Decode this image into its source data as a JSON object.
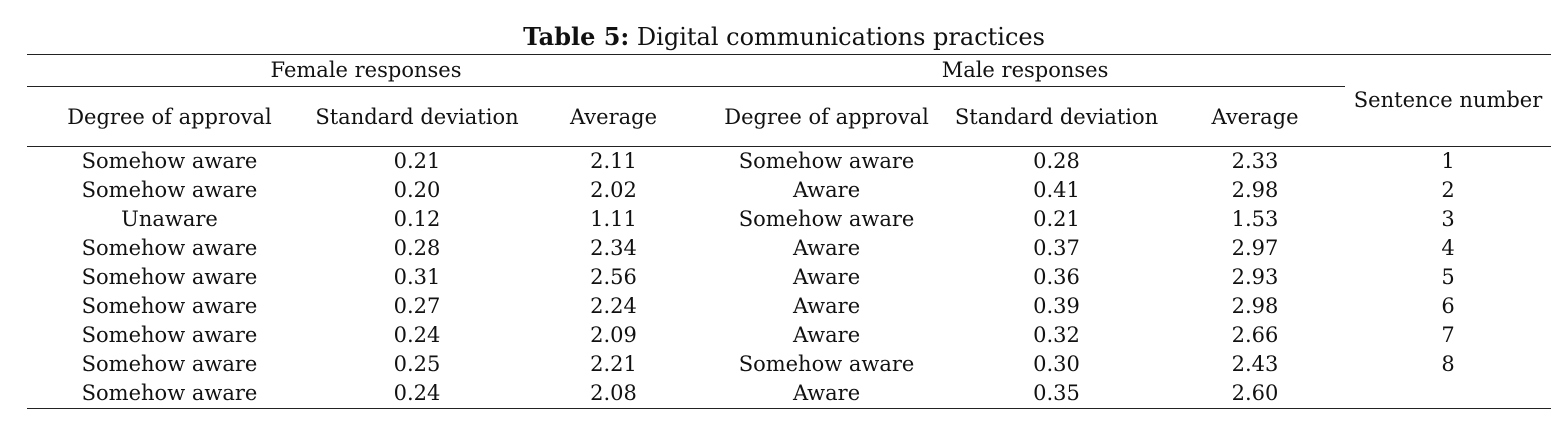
{
  "caption": {
    "label": "Table 5:",
    "text": " Digital communications practices"
  },
  "header": {
    "female_group": "Female responses",
    "male_group": "Male responses",
    "sentence_number": "Sentence number",
    "degree": "Degree of approval",
    "std": "Standard deviation",
    "avg": "Average"
  },
  "rows": [
    {
      "f_deg": "Somehow aware",
      "f_std": "0.21",
      "f_avg": "2.11",
      "m_deg": "Somehow aware",
      "m_std": "0.28",
      "m_avg": "2.33",
      "num": "1"
    },
    {
      "f_deg": "Somehow aware",
      "f_std": "0.20",
      "f_avg": "2.02",
      "m_deg": "Aware",
      "m_std": "0.41",
      "m_avg": "2.98",
      "num": "2"
    },
    {
      "f_deg": "Unaware",
      "f_std": "0.12",
      "f_avg": "1.11",
      "m_deg": "Somehow aware",
      "m_std": "0.21",
      "m_avg": "1.53",
      "num": "3"
    },
    {
      "f_deg": "Somehow aware",
      "f_std": "0.28",
      "f_avg": "2.34",
      "m_deg": "Aware",
      "m_std": "0.37",
      "m_avg": "2.97",
      "num": "4"
    },
    {
      "f_deg": "Somehow aware",
      "f_std": "0.31",
      "f_avg": "2.56",
      "m_deg": "Aware",
      "m_std": "0.36",
      "m_avg": "2.93",
      "num": "5"
    },
    {
      "f_deg": "Somehow aware",
      "f_std": "0.27",
      "f_avg": "2.24",
      "m_deg": "Aware",
      "m_std": "0.39",
      "m_avg": "2.98",
      "num": "6"
    },
    {
      "f_deg": "Somehow aware",
      "f_std": "0.24",
      "f_avg": "2.09",
      "m_deg": "Aware",
      "m_std": "0.32",
      "m_avg": "2.66",
      "num": "7"
    },
    {
      "f_deg": "Somehow aware",
      "f_std": "0.25",
      "f_avg": "2.21",
      "m_deg": "Somehow aware",
      "m_std": "0.30",
      "m_avg": "2.43",
      "num": "8"
    },
    {
      "f_deg": "Somehow aware",
      "f_std": "0.24",
      "f_avg": "2.08",
      "m_deg": "Aware",
      "m_std": "0.35",
      "m_avg": "2.60",
      "num": ""
    }
  ]
}
